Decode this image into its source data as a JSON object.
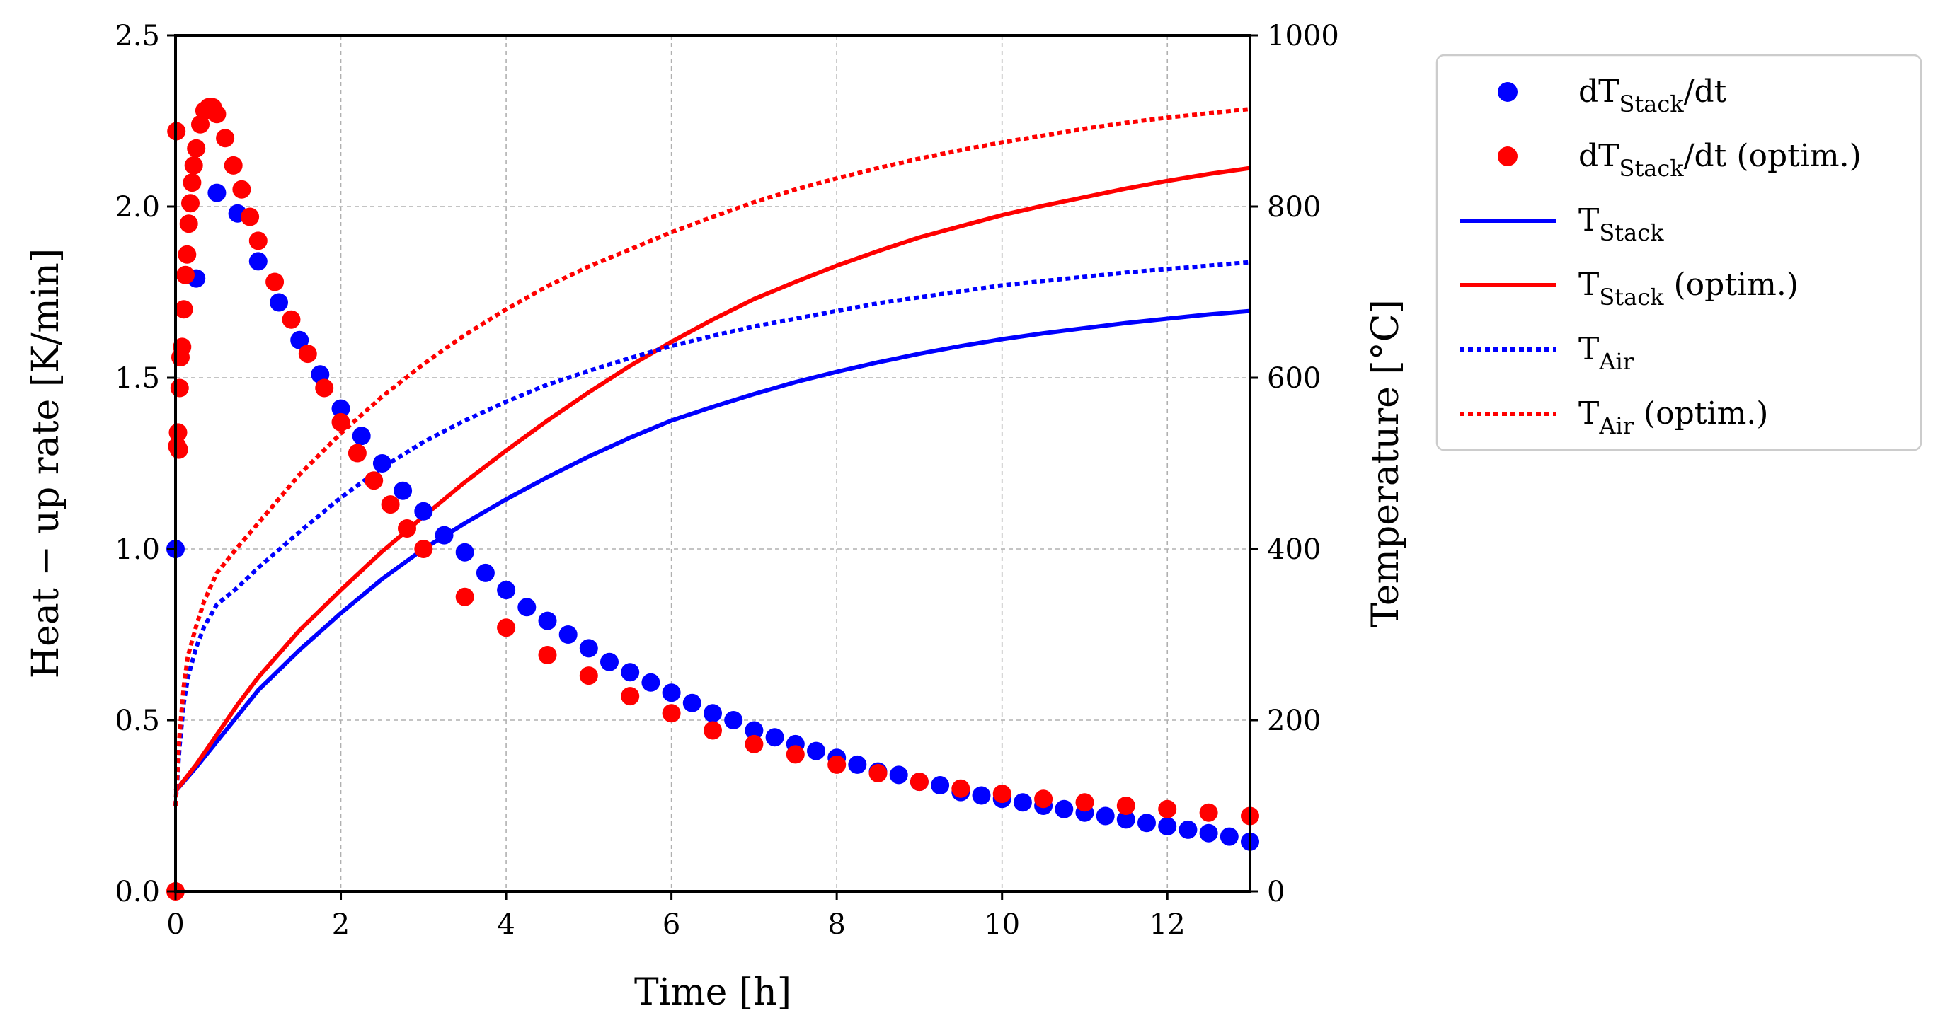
{
  "chart_data": {
    "type": "line",
    "title": "",
    "xlabel": "Time [h]",
    "ylabel_left": "Heat − up rate [K/min]",
    "ylabel_right": "Temperature [°C]",
    "xlim": [
      0,
      13
    ],
    "ylim_left": [
      0,
      2.5
    ],
    "ylim_right": [
      0,
      1000
    ],
    "xticks": [
      "0",
      "2",
      "4",
      "6",
      "8",
      "10",
      "12"
    ],
    "yticks_left": [
      "0.0",
      "0.5",
      "1.0",
      "1.5",
      "2.0",
      "2.5"
    ],
    "yticks_right": [
      "0",
      "200",
      "400",
      "600",
      "800",
      "1000"
    ],
    "grid": true,
    "legend_position": "outside-right-top",
    "legend": [
      {
        "main": "dT",
        "sub": "Stack",
        "suffix": "/dt",
        "marker": "dot",
        "color": "#0000ff"
      },
      {
        "main": "dT",
        "sub": "Stack",
        "suffix": "/dt (optim.)",
        "marker": "dot",
        "color": "#ff0000"
      },
      {
        "main": "T",
        "sub": "Stack",
        "suffix": "",
        "marker": "solid",
        "color": "#0000ff"
      },
      {
        "main": "T",
        "sub": "Stack",
        "suffix": " (optim.)",
        "marker": "solid",
        "color": "#ff0000"
      },
      {
        "main": "T",
        "sub": "Air",
        "suffix": "",
        "marker": "dotted",
        "color": "#0000ff"
      },
      {
        "main": "T",
        "sub": "Air",
        "suffix": " (optim.)",
        "marker": "dotted",
        "color": "#ff0000"
      }
    ],
    "series": [
      {
        "name": "dT_Stack/dt",
        "axis": "left",
        "style": "dots",
        "color": "#0000ff",
        "x": [
          0,
          0.25,
          0.5,
          0.75,
          1,
          1.25,
          1.5,
          1.75,
          2,
          2.25,
          2.5,
          2.75,
          3,
          3.25,
          3.5,
          3.75,
          4,
          4.25,
          4.5,
          4.75,
          5,
          5.25,
          5.5,
          5.75,
          6,
          6.25,
          6.5,
          6.75,
          7,
          7.25,
          7.5,
          7.75,
          8,
          8.25,
          8.5,
          8.75,
          9,
          9.25,
          9.5,
          9.75,
          10,
          10.25,
          10.5,
          10.75,
          11,
          11.25,
          11.5,
          11.75,
          12,
          12.25,
          12.5,
          12.75,
          13
        ],
        "y": [
          1.0,
          1.79,
          2.04,
          1.98,
          1.84,
          1.72,
          1.61,
          1.51,
          1.41,
          1.33,
          1.25,
          1.17,
          1.11,
          1.04,
          0.99,
          0.93,
          0.88,
          0.83,
          0.79,
          0.75,
          0.71,
          0.67,
          0.64,
          0.61,
          0.58,
          0.55,
          0.52,
          0.5,
          0.47,
          0.45,
          0.43,
          0.41,
          0.39,
          0.37,
          0.35,
          0.34,
          0.32,
          0.31,
          0.29,
          0.28,
          0.27,
          0.26,
          0.25,
          0.24,
          0.23,
          0.22,
          0.21,
          0.2,
          0.19,
          0.18,
          0.17,
          0.16,
          0.145
        ]
      },
      {
        "name": "dT_Stack/dt (optim.)",
        "axis": "left",
        "style": "dots",
        "color": "#ff0000",
        "x": [
          0,
          0.01,
          0.02,
          0.03,
          0.04,
          0.05,
          0.06,
          0.08,
          0.1,
          0.12,
          0.14,
          0.16,
          0.18,
          0.2,
          0.22,
          0.25,
          0.3,
          0.35,
          0.4,
          0.45,
          0.5,
          0.6,
          0.7,
          0.8,
          0.9,
          1,
          1.2,
          1.4,
          1.6,
          1.8,
          2,
          2.2,
          2.4,
          2.6,
          2.8,
          3,
          3.5,
          4,
          4.5,
          5,
          5.5,
          6,
          6.5,
          7,
          7.5,
          8,
          8.5,
          9,
          9.5,
          10,
          10.5,
          11,
          11.5,
          12,
          12.5,
          13
        ],
        "y": [
          0.0,
          2.22,
          1.3,
          1.34,
          1.29,
          1.47,
          1.56,
          1.59,
          1.7,
          1.8,
          1.86,
          1.95,
          2.01,
          2.07,
          2.12,
          2.17,
          2.24,
          2.28,
          2.29,
          2.29,
          2.27,
          2.2,
          2.12,
          2.05,
          1.97,
          1.9,
          1.78,
          1.67,
          1.57,
          1.47,
          1.37,
          1.28,
          1.2,
          1.13,
          1.06,
          1.0,
          0.86,
          0.77,
          0.69,
          0.63,
          0.57,
          0.52,
          0.47,
          0.43,
          0.4,
          0.37,
          0.345,
          0.32,
          0.3,
          0.285,
          0.27,
          0.26,
          0.25,
          0.24,
          0.23,
          0.22
        ]
      },
      {
        "name": "T_Stack",
        "axis": "right",
        "style": "solid",
        "color": "#0000ff",
        "x": [
          0,
          0.25,
          0.5,
          0.75,
          1,
          1.5,
          2,
          2.5,
          3,
          3.5,
          4,
          4.5,
          5,
          5.5,
          6,
          6.5,
          7,
          7.5,
          8,
          8.5,
          9,
          9.5,
          10,
          10.5,
          11,
          11.5,
          12,
          12.5,
          13
        ],
        "y": [
          117,
          145,
          175,
          205,
          235,
          282,
          325,
          365,
          400,
          430,
          458,
          484,
          508,
          530,
          550,
          566,
          581,
          595,
          607,
          618,
          628,
          637,
          645,
          652,
          658,
          664,
          669,
          674,
          678
        ]
      },
      {
        "name": "T_Stack (optim.)",
        "axis": "right",
        "style": "solid",
        "color": "#ff0000",
        "x": [
          0,
          0.25,
          0.5,
          0.75,
          1,
          1.5,
          2,
          2.5,
          3,
          3.5,
          4,
          4.5,
          5,
          5.5,
          6,
          6.5,
          7,
          7.5,
          8,
          8.5,
          9,
          9.5,
          10,
          10.5,
          11,
          11.5,
          12,
          12.5,
          13
        ],
        "y": [
          117,
          148,
          183,
          218,
          250,
          305,
          352,
          397,
          438,
          478,
          515,
          550,
          583,
          614,
          642,
          668,
          692,
          712,
          731,
          748,
          764,
          777,
          790,
          801,
          811,
          821,
          830,
          838,
          845
        ]
      },
      {
        "name": "T_Air",
        "axis": "right",
        "style": "dotted",
        "color": "#0000ff",
        "x": [
          0,
          0.05,
          0.1,
          0.15,
          0.25,
          0.35,
          0.5,
          0.75,
          1,
          1.5,
          2,
          2.5,
          3,
          3.5,
          4,
          4.5,
          5,
          5.5,
          6,
          6.5,
          7,
          7.5,
          8,
          8.5,
          9,
          9.5,
          10,
          10.5,
          11,
          11.5,
          12,
          12.5,
          13
        ],
        "y": [
          100,
          170,
          220,
          250,
          285,
          310,
          335,
          355,
          378,
          420,
          460,
          495,
          525,
          550,
          572,
          592,
          608,
          623,
          637,
          649,
          660,
          669,
          678,
          687,
          694,
          701,
          708,
          713,
          718,
          723,
          727,
          731,
          735
        ]
      },
      {
        "name": "T_Air (optim.)",
        "axis": "right",
        "style": "dotted",
        "color": "#ff0000",
        "x": [
          0,
          0.05,
          0.1,
          0.15,
          0.25,
          0.35,
          0.5,
          0.75,
          1,
          1.5,
          2,
          2.5,
          3,
          3.5,
          4,
          4.5,
          5,
          5.5,
          6,
          6.5,
          7,
          7.5,
          8,
          8.5,
          9,
          9.5,
          10,
          10.5,
          11,
          11.5,
          12,
          12.5,
          13
        ],
        "y": [
          100,
          185,
          240,
          275,
          310,
          340,
          372,
          402,
          430,
          487,
          535,
          578,
          616,
          650,
          680,
          707,
          730,
          750,
          770,
          788,
          805,
          820,
          833,
          845,
          856,
          866,
          875,
          883,
          891,
          898,
          904,
          909,
          914
        ]
      }
    ]
  }
}
